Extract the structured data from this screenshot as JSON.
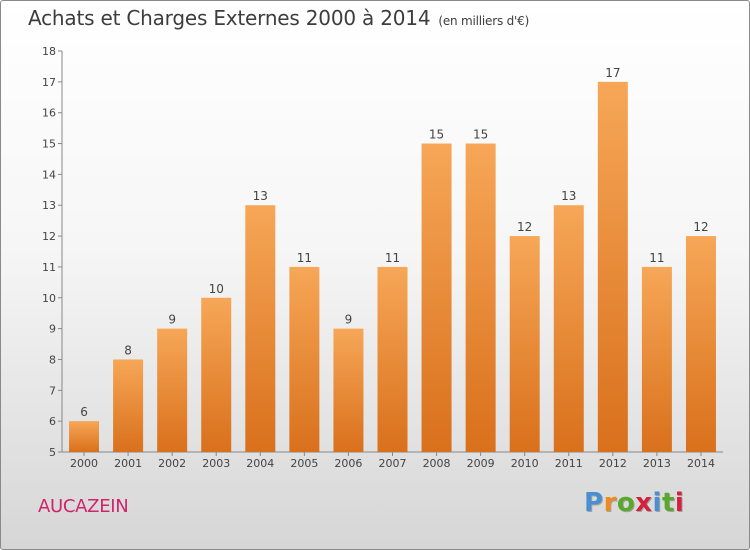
{
  "title": "Achats et Charges Externes 2000 à 2014",
  "unit": "(en milliers d'€)",
  "town": "AUCAZEIN",
  "logo": {
    "text": "Proxiti",
    "colors": [
      "#4a8fd0",
      "#ef8a1f",
      "#59a82c",
      "#d4213d",
      "#4a8fd0",
      "#59a82c",
      "#d4213d"
    ]
  },
  "colors": {
    "bar_top": "#f6a757",
    "bar_bottom": "#d9701c",
    "title": "#3d3d3d",
    "town": "#d1246e"
  },
  "chart_data": {
    "type": "bar",
    "categories": [
      "2000",
      "2001",
      "2002",
      "2003",
      "2004",
      "2005",
      "2006",
      "2007",
      "2008",
      "2009",
      "2010",
      "2011",
      "2012",
      "2013",
      "2014"
    ],
    "values": [
      6,
      8,
      9,
      10,
      13,
      11,
      9,
      11,
      15,
      15,
      12,
      13,
      17,
      11,
      12
    ],
    "ylim": [
      5,
      18
    ],
    "yticks": [
      5,
      6,
      7,
      8,
      9,
      10,
      11,
      12,
      13,
      14,
      15,
      16,
      17,
      18
    ],
    "grid": false,
    "xlabel": "",
    "ylabel": ""
  }
}
